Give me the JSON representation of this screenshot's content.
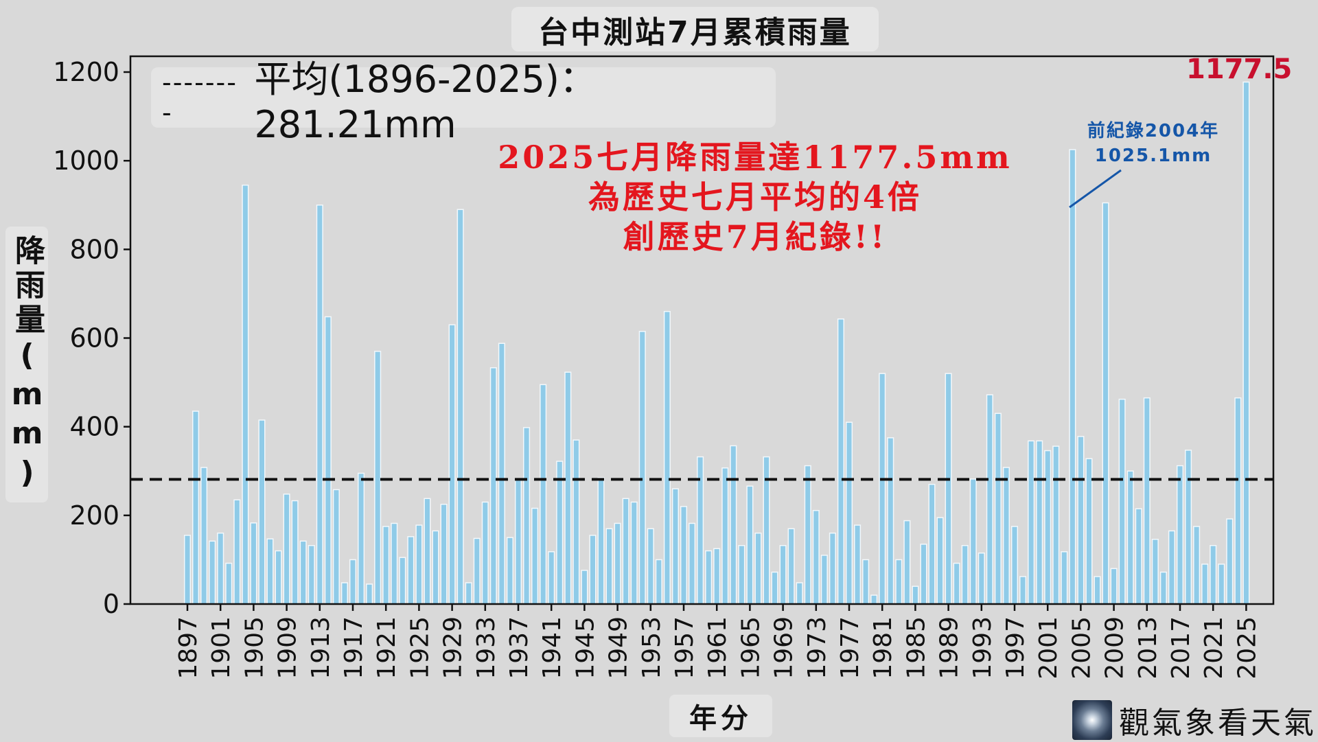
{
  "title": "台中測站7月累積雨量",
  "avg_line_label": "平均(1896-2025)：281.21mm",
  "annotation": [
    "2025七月降雨量達1177.5mm",
    "為歷史七月平均的4倍",
    "創歷史7月紀錄!!"
  ],
  "prev_record": [
    "前紀錄2004年",
    "1025.1mm"
  ],
  "max_label": "1177.5",
  "y_title": "降雨量(mm)",
  "x_title": "年分",
  "logo_text": "觀氣象看天氣",
  "colors": {
    "bar_fill": "#8fcbe8",
    "bar_edge": "#f2f8fc",
    "average_line": "#111111",
    "annotation": "#e4161e",
    "prev_record": "#1556a8",
    "max_label": "#c8102e"
  },
  "chart_data": {
    "type": "bar",
    "title": "台中測站7月累積雨量",
    "xlabel": "年分",
    "ylabel": "降雨量(mm)",
    "ylim": [
      0,
      1200
    ],
    "yticks": [
      0,
      200,
      400,
      600,
      800,
      1000,
      1200
    ],
    "xticks": [
      "1897",
      "1901",
      "1905",
      "1909",
      "1913",
      "1917",
      "1921",
      "1925",
      "1929",
      "1933",
      "1937",
      "1941",
      "1945",
      "1949",
      "1953",
      "1957",
      "1961",
      "1965",
      "1969",
      "1973",
      "1977",
      "1981",
      "1985",
      "1989",
      "1993",
      "1997",
      "2001",
      "2005",
      "2009",
      "2013",
      "2017",
      "2021",
      "2025"
    ],
    "grid": false,
    "average": 281.21,
    "x_start": 1897,
    "values": [
      155,
      435,
      308,
      142,
      160,
      92,
      235,
      945,
      183,
      415,
      147,
      120,
      248,
      233,
      142,
      132,
      900,
      648,
      258,
      48,
      100,
      295,
      45,
      570,
      175,
      182,
      105,
      152,
      178,
      238,
      165,
      225,
      630,
      890,
      48,
      148,
      230,
      533,
      588,
      150,
      280,
      398,
      216,
      495,
      118,
      322,
      523,
      370,
      76,
      155,
      285,
      170,
      182,
      238,
      230,
      615,
      170,
      100,
      660,
      260,
      220,
      182,
      332,
      120,
      125,
      307,
      357,
      132,
      266,
      160,
      332,
      72,
      132,
      170,
      48,
      312,
      211,
      110,
      160,
      643,
      410,
      178,
      100,
      20,
      520,
      375,
      100,
      188,
      40,
      135,
      270,
      195,
      520,
      92,
      132,
      282,
      115,
      472,
      430,
      308,
      175,
      62,
      368,
      368,
      346,
      356,
      118,
      1025.1,
      378,
      328,
      62,
      905,
      80,
      462,
      300,
      215,
      465,
      146,
      72,
      165,
      312,
      347,
      175,
      90,
      132,
      90,
      192,
      465,
      1177.5
    ]
  }
}
